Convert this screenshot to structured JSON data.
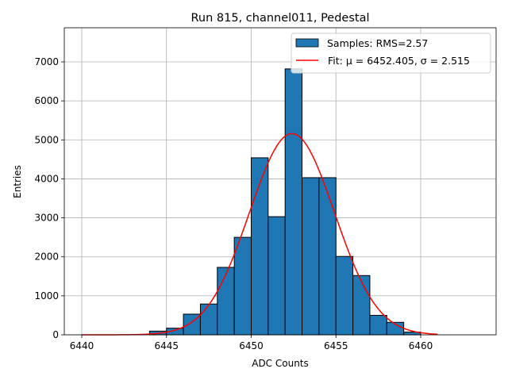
{
  "chart_data": {
    "type": "bar",
    "title": "Run 815, channel011, Pedestal",
    "xlabel": "ADC Counts",
    "ylabel": "Entries",
    "xlim": [
      6438.97,
      6464.45
    ],
    "ylim": [
      0,
      7875
    ],
    "xticks": [
      6440,
      6445,
      6450,
      6455,
      6460
    ],
    "yticks": [
      0,
      1000,
      2000,
      3000,
      4000,
      5000,
      6000,
      7000
    ],
    "grid": true,
    "legend_placement": "top-right",
    "bins": {
      "edges_start": [
        6444,
        6445,
        6446,
        6447,
        6448,
        6449,
        6450,
        6451,
        6452,
        6453,
        6454,
        6455,
        6456,
        6457,
        6458,
        6459
      ],
      "width": 1,
      "values": [
        95,
        170,
        530,
        790,
        1730,
        2500,
        4540,
        3030,
        6820,
        4030,
        4030,
        2010,
        1520,
        500,
        320,
        70
      ]
    },
    "series": [
      {
        "name": "Samples: RMS=2.57",
        "kind": "histogram",
        "color": "#1f77b4",
        "edgecolor": "#000000"
      },
      {
        "name": "Fit: μ = 6452.405, σ = 2.515",
        "kind": "gaussian-line",
        "color": "#ff0000",
        "mu": 6452.405,
        "sigma": 2.515,
        "amplitude": 5160,
        "x_range": [
          6440,
          6461
        ]
      }
    ]
  }
}
